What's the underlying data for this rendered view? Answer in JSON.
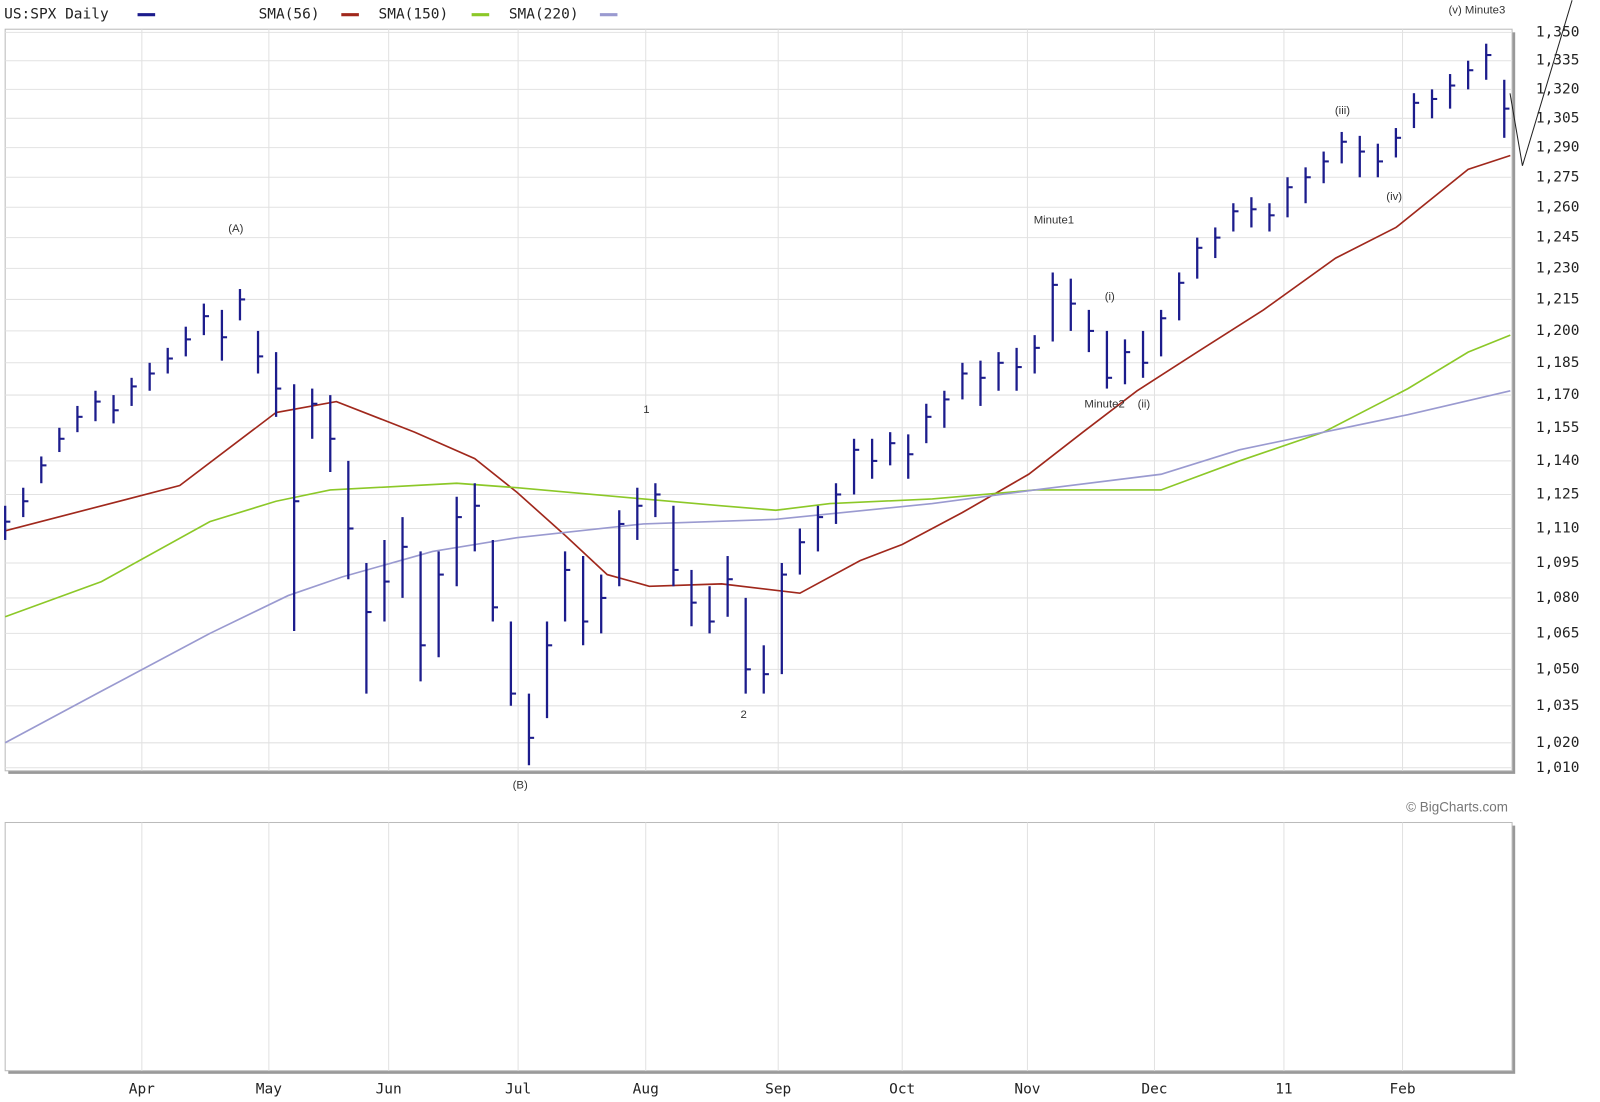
{
  "chart_data": {
    "type": "ohlc",
    "log": true,
    "grid": true,
    "ylim": [
      1008.8,
      1351.7
    ],
    "yticks": [
      {
        "value": 1010,
        "label": "1,010"
      },
      {
        "value": 1020,
        "label": "1,020"
      },
      {
        "value": 1035,
        "label": "1,035"
      },
      {
        "value": 1050,
        "label": "1,050"
      },
      {
        "value": 1065,
        "label": "1,065"
      },
      {
        "value": 1080,
        "label": "1,080"
      },
      {
        "value": 1095,
        "label": "1,095"
      },
      {
        "value": 1110,
        "label": "1,110"
      },
      {
        "value": 1125,
        "label": "1,125"
      },
      {
        "value": 1140,
        "label": "1,140"
      },
      {
        "value": 1155,
        "label": "1,155"
      },
      {
        "value": 1170,
        "label": "1,170"
      },
      {
        "value": 1185,
        "label": "1,185"
      },
      {
        "value": 1200,
        "label": "1,200"
      },
      {
        "value": 1215,
        "label": "1,215"
      },
      {
        "value": 1230,
        "label": "1,230"
      },
      {
        "value": 1245,
        "label": "1,245"
      },
      {
        "value": 1260,
        "label": "1,260"
      },
      {
        "value": 1275,
        "label": "1,275"
      },
      {
        "value": 1290,
        "label": "1,290"
      },
      {
        "value": 1305,
        "label": "1,305"
      },
      {
        "value": 1320,
        "label": "1,320"
      },
      {
        "value": 1335,
        "label": "1,335"
      },
      {
        "value": 1350,
        "label": "1,350"
      }
    ],
    "xlim": [
      0,
      250.3
    ],
    "xticks": [
      {
        "value": 22.7,
        "label": "Apr"
      },
      {
        "value": 43.8,
        "label": "May"
      },
      {
        "value": 63.7,
        "label": "Jun"
      },
      {
        "value": 85.2,
        "label": "Jul"
      },
      {
        "value": 106.4,
        "label": "Aug"
      },
      {
        "value": 128.4,
        "label": "Sep"
      },
      {
        "value": 149.0,
        "label": "Oct"
      },
      {
        "value": 169.8,
        "label": "Nov"
      },
      {
        "value": 190.9,
        "label": "Dec"
      },
      {
        "value": 212.4,
        "label": "11"
      },
      {
        "value": 232.1,
        "label": "Feb"
      }
    ],
    "series": [
      {
        "name": "US:SPX Daily",
        "type": "ohlc",
        "color": "#1c1c8c",
        "x": [
          0,
          3,
          6,
          9,
          12,
          15,
          18,
          21,
          24,
          27,
          30,
          33,
          36,
          39,
          42,
          45,
          48,
          51,
          54,
          57,
          60,
          63,
          66,
          69,
          72,
          75,
          78,
          81,
          84,
          87,
          90,
          93,
          96,
          99,
          102,
          105,
          108,
          111,
          114,
          117,
          120,
          123,
          126,
          129,
          132,
          135,
          138,
          141,
          144,
          147,
          150,
          153,
          156,
          159,
          162,
          165,
          168,
          171,
          174,
          177,
          180,
          183,
          186,
          189,
          192,
          195,
          198,
          201,
          204,
          207,
          210,
          213,
          216,
          219,
          222,
          225,
          228,
          231,
          234,
          237,
          240,
          243,
          246,
          249
        ],
        "high": [
          1120,
          1128,
          1142,
          1155,
          1165,
          1172,
          1170,
          1178,
          1185,
          1192,
          1202,
          1213,
          1210,
          1220,
          1200,
          1190,
          1175,
          1173,
          1170,
          1140,
          1095,
          1105,
          1115,
          1100,
          1100,
          1124,
          1130,
          1105,
          1070,
          1040,
          1070,
          1100,
          1098,
          1090,
          1118,
          1128,
          1130,
          1120,
          1092,
          1085,
          1098,
          1080,
          1060,
          1095,
          1110,
          1120,
          1130,
          1150,
          1150,
          1153,
          1152,
          1166,
          1172,
          1185,
          1186,
          1190,
          1192,
          1198,
          1228,
          1225,
          1210,
          1200,
          1196,
          1200,
          1210,
          1228,
          1245,
          1250,
          1262,
          1265,
          1262,
          1275,
          1280,
          1288,
          1298,
          1296,
          1292,
          1300,
          1318,
          1320,
          1328,
          1335,
          1344,
          1325
        ],
        "low": [
          1105,
          1115,
          1130,
          1144,
          1153,
          1158,
          1157,
          1165,
          1172,
          1180,
          1188,
          1198,
          1186,
          1205,
          1180,
          1160,
          1066,
          1150,
          1135,
          1088,
          1040,
          1070,
          1080,
          1045,
          1055,
          1085,
          1100,
          1070,
          1035,
          1011,
          1030,
          1070,
          1060,
          1065,
          1085,
          1105,
          1115,
          1085,
          1068,
          1065,
          1072,
          1040,
          1040,
          1048,
          1090,
          1100,
          1112,
          1125,
          1132,
          1138,
          1132,
          1148,
          1155,
          1168,
          1165,
          1172,
          1172,
          1180,
          1195,
          1200,
          1190,
          1173,
          1175,
          1178,
          1188,
          1205,
          1225,
          1235,
          1248,
          1250,
          1248,
          1255,
          1262,
          1272,
          1282,
          1275,
          1275,
          1285,
          1300,
          1305,
          1310,
          1320,
          1325,
          1295
        ],
        "close": [
          1113,
          1122,
          1138,
          1150,
          1160,
          1167,
          1163,
          1174,
          1180,
          1187,
          1196,
          1207,
          1197,
          1215,
          1188,
          1173,
          1122,
          1166,
          1150,
          1110,
          1074,
          1087,
          1102,
          1060,
          1090,
          1115,
          1120,
          1076,
          1040,
          1022,
          1060,
          1092,
          1070,
          1080,
          1112,
          1120,
          1125,
          1092,
          1078,
          1070,
          1088,
          1050,
          1048,
          1090,
          1104,
          1115,
          1125,
          1145,
          1140,
          1148,
          1143,
          1160,
          1168,
          1180,
          1178,
          1185,
          1183,
          1192,
          1222,
          1213,
          1200,
          1178,
          1190,
          1185,
          1206,
          1223,
          1240,
          1245,
          1258,
          1259,
          1256,
          1270,
          1275,
          1283,
          1293,
          1288,
          1283,
          1295,
          1313,
          1315,
          1322,
          1330,
          1338,
          1310
        ]
      },
      {
        "name": "SMA(56)",
        "type": "line",
        "color": "#a0281c",
        "x": [
          0,
          29,
          45,
          55,
          68,
          78,
          85,
          93,
          100,
          107,
          119,
          132,
          142,
          149,
          159,
          170,
          179,
          188,
          198,
          209,
          221,
          231,
          243,
          250
        ],
        "values": [
          1109,
          1129,
          1162,
          1167,
          1153,
          1141,
          1126,
          1107,
          1090,
          1085,
          1086,
          1082,
          1096,
          1103,
          1117,
          1134,
          1153,
          1172,
          1190,
          1210,
          1235,
          1250,
          1279,
          1286
        ]
      },
      {
        "name": "SMA(150)",
        "type": "line",
        "color": "#8cc828",
        "x": [
          0,
          16,
          34,
          45,
          54,
          75,
          85,
          106,
          119,
          128,
          137,
          154,
          171,
          192,
          205,
          219,
          233,
          243,
          250
        ],
        "values": [
          1072,
          1087,
          1113,
          1122,
          1127,
          1130,
          1128,
          1123,
          1120,
          1118,
          1121,
          1123,
          1127,
          1127,
          1140,
          1153,
          1173,
          1190,
          1198
        ]
      },
      {
        "name": "SMA(220)",
        "type": "line",
        "color": "#9a9ad0",
        "x": [
          0,
          16,
          34,
          47,
          56,
          71,
          85,
          106,
          128,
          154,
          171,
          192,
          205,
          219,
          233,
          250
        ],
        "values": [
          1020,
          1041,
          1065,
          1081,
          1089,
          1100,
          1106,
          1112,
          1114,
          1121,
          1127,
          1134,
          1145,
          1153,
          1161,
          1172
        ]
      }
    ],
    "annotations": [
      "(A)",
      "(B)",
      "1",
      "2",
      "Minute1",
      "(i)",
      "Minute2",
      "(ii)",
      "(iii)",
      "(iv)",
      "(v) Minute3"
    ],
    "credit": "© BigCharts.com"
  }
}
